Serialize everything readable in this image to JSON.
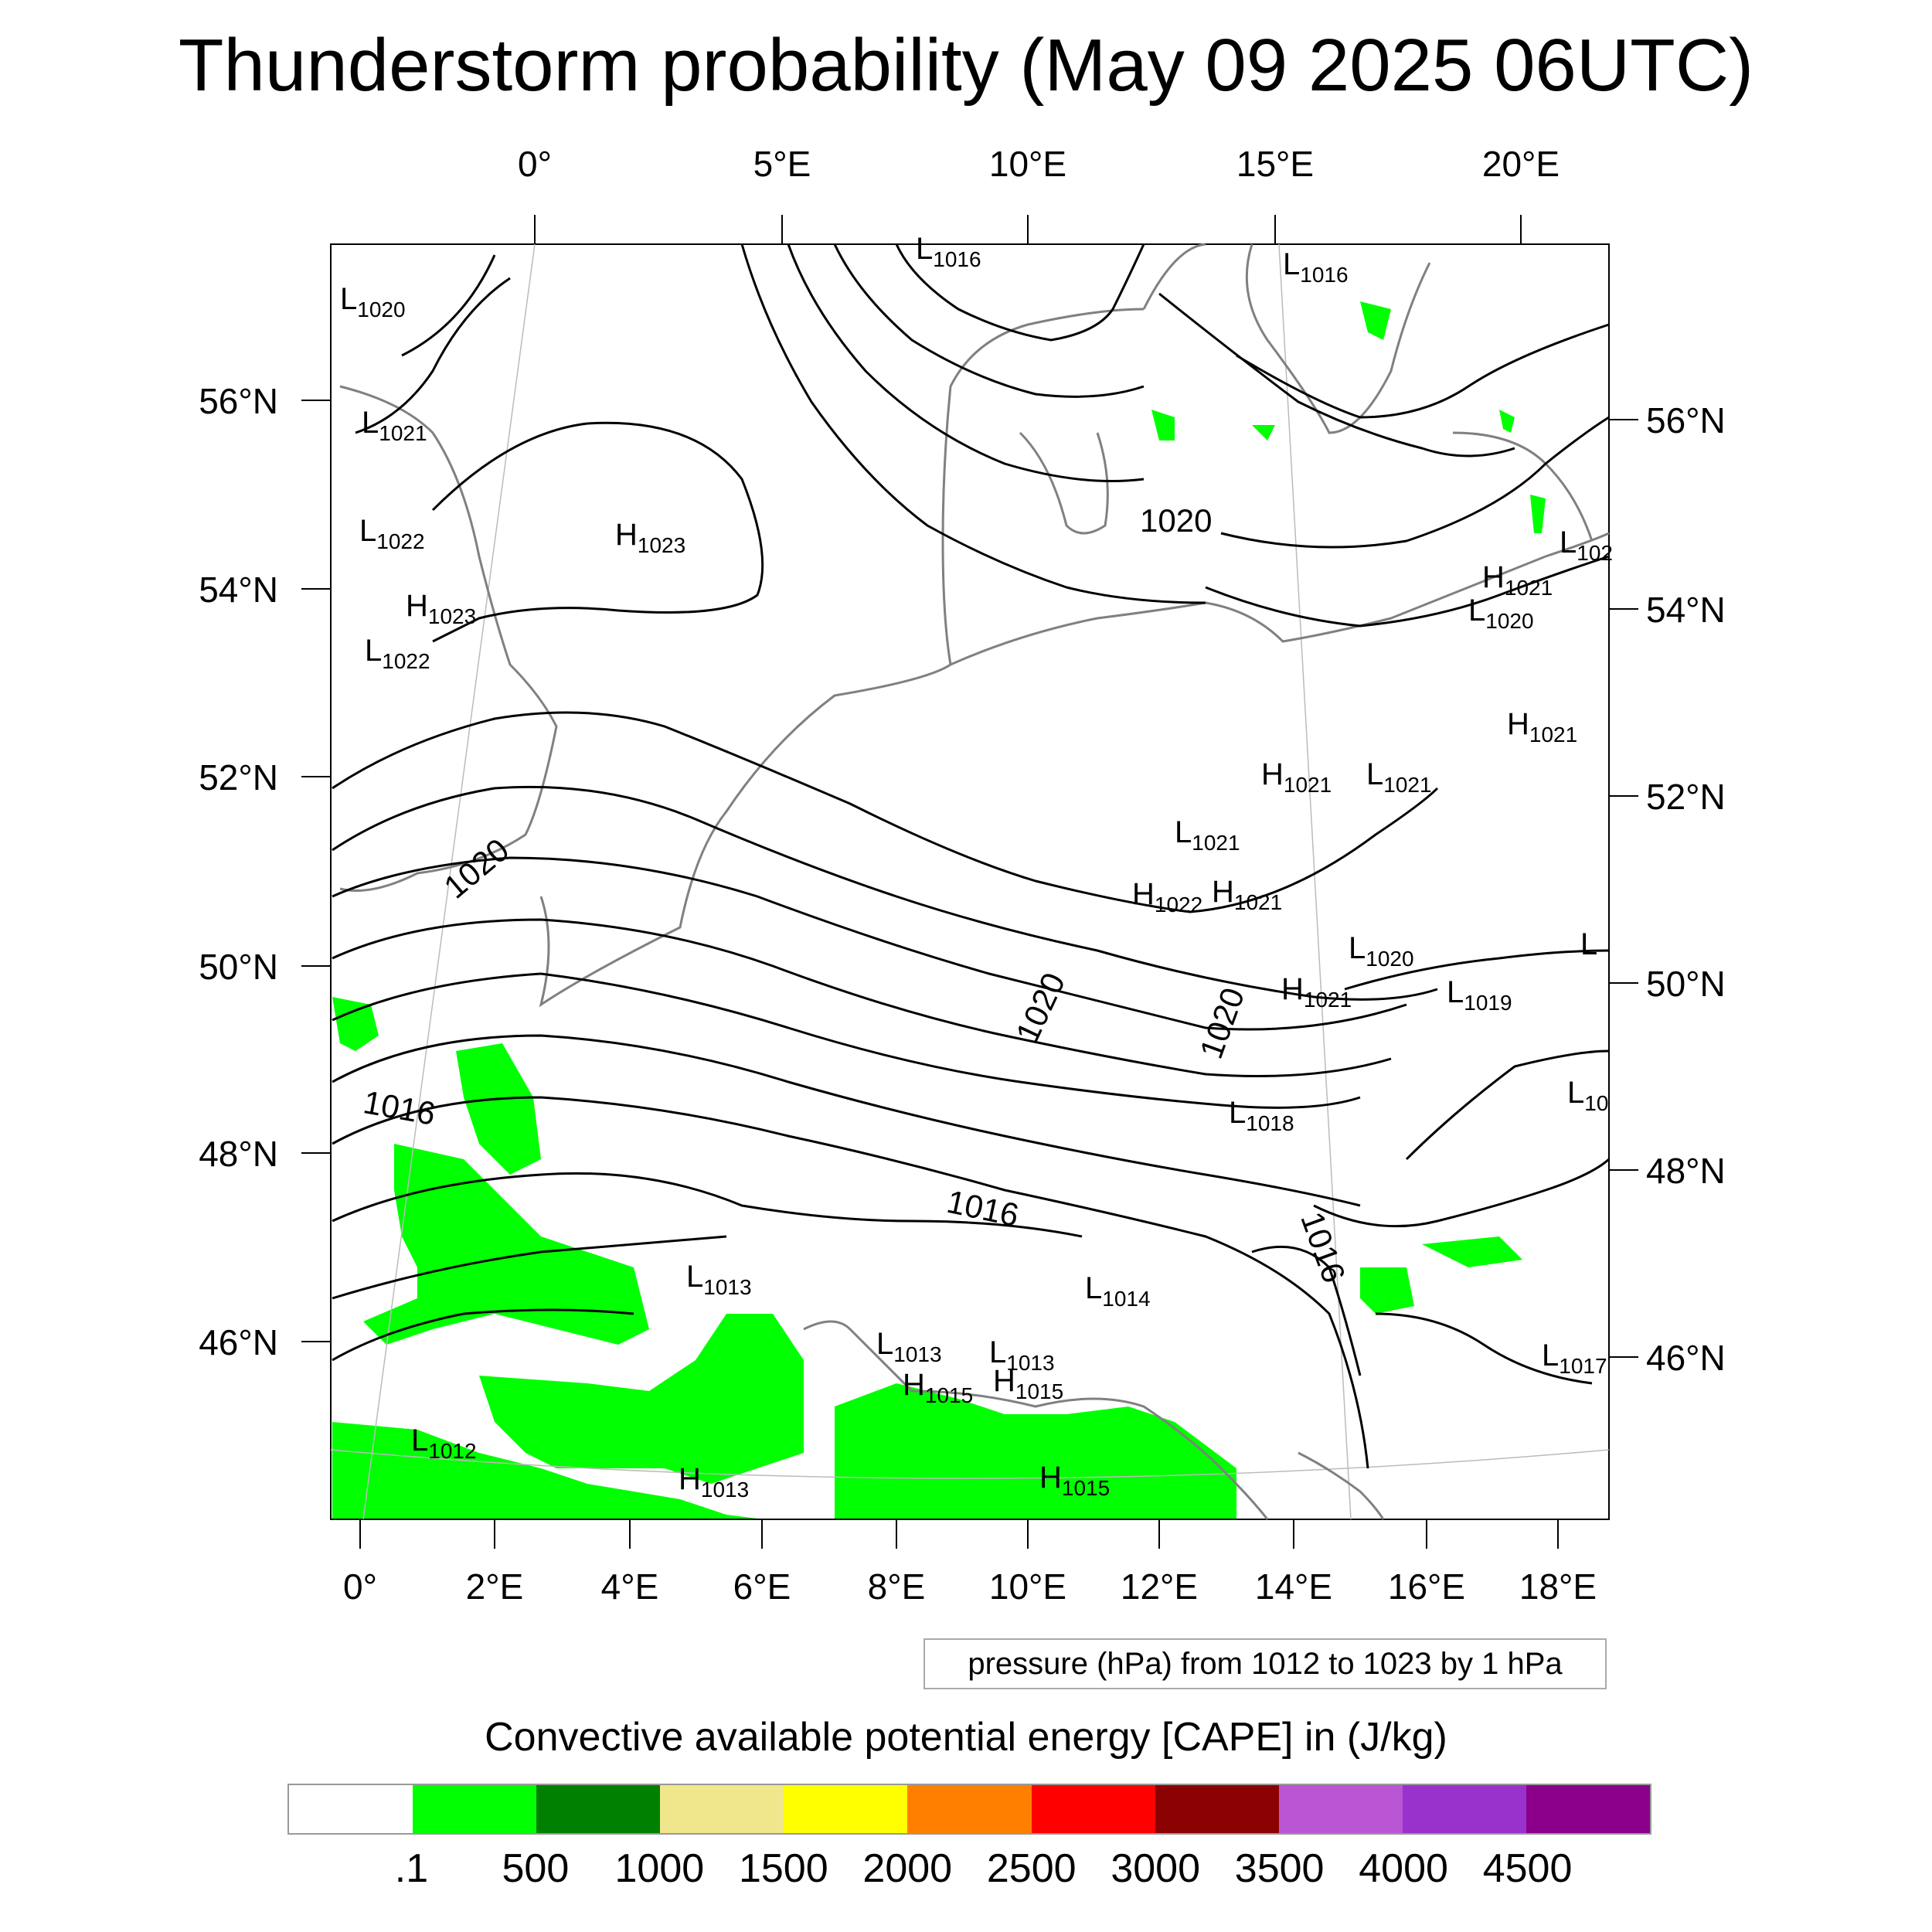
{
  "title": "Thunderstorm probability (May 09 2025 06UTC)",
  "map": {
    "top_lon_labels": [
      "0°",
      "5°E",
      "10°E",
      "15°E",
      "20°E"
    ],
    "bottom_lon_labels": [
      "0°",
      "2°E",
      "4°E",
      "6°E",
      "8°E",
      "10°E",
      "12°E",
      "14°E",
      "16°E",
      "18°E"
    ],
    "left_lat_labels": [
      "56°N",
      "54°N",
      "52°N",
      "50°N",
      "48°N",
      "46°N"
    ],
    "right_lat_labels": [
      "56°N",
      "54°N",
      "52°N",
      "50°N",
      "48°N",
      "46°N"
    ],
    "contour_labels": [
      "1020",
      "1020",
      "1020",
      "1020",
      "1016",
      "1016",
      "1016"
    ],
    "centers": [
      {
        "type": "L",
        "value": "1016"
      },
      {
        "type": "L",
        "value": "1016"
      },
      {
        "type": "L",
        "value": "1020"
      },
      {
        "type": "L",
        "value": "1021"
      },
      {
        "type": "L",
        "value": "1022"
      },
      {
        "type": "H",
        "value": "1023"
      },
      {
        "type": "H",
        "value": "1023"
      },
      {
        "type": "L",
        "value": "1022"
      },
      {
        "type": "L",
        "value": "102"
      },
      {
        "type": "H",
        "value": "1021"
      },
      {
        "type": "L",
        "value": "1020"
      },
      {
        "type": "H",
        "value": "1021"
      },
      {
        "type": "H",
        "value": "1021"
      },
      {
        "type": "L",
        "value": "1021"
      },
      {
        "type": "L",
        "value": "1021"
      },
      {
        "type": "H",
        "value": "1022"
      },
      {
        "type": "H",
        "value": "1021"
      },
      {
        "type": "L",
        "value": "1020"
      },
      {
        "type": "L",
        "value": ""
      },
      {
        "type": "H",
        "value": "1021"
      },
      {
        "type": "L",
        "value": "1019"
      },
      {
        "type": "L",
        "value": "1018"
      },
      {
        "type": "L",
        "value": "10"
      },
      {
        "type": "L",
        "value": "1013"
      },
      {
        "type": "L",
        "value": "1014"
      },
      {
        "type": "L",
        "value": "1013"
      },
      {
        "type": "L",
        "value": "1013"
      },
      {
        "type": "H",
        "value": "1015"
      },
      {
        "type": "H",
        "value": "1015"
      },
      {
        "type": "L",
        "value": "1017"
      },
      {
        "type": "L",
        "value": "1012"
      },
      {
        "type": "H",
        "value": "1013"
      },
      {
        "type": "H",
        "value": "1015"
      }
    ],
    "contour_color": "#000000",
    "coast_color": "#808080",
    "cape_fill_color": "#00ff00"
  },
  "pressure_note": "pressure (hPa) from 1012 to 1023 by 1 hPa",
  "colorbar": {
    "title": "Convective available potential energy [CAPE] in (J/kg)",
    "colors": [
      "#ffffff",
      "#00ff00",
      "#008000",
      "#f0e68c",
      "#ffff00",
      "#ff8000",
      "#ff0000",
      "#8b0000",
      "#ba55d3",
      "#9932cc",
      "#8b008b"
    ],
    "tick_labels": [
      ".1",
      "500",
      "1000",
      "1500",
      "2000",
      "2500",
      "3000",
      "3500",
      "4000",
      "4500"
    ]
  }
}
